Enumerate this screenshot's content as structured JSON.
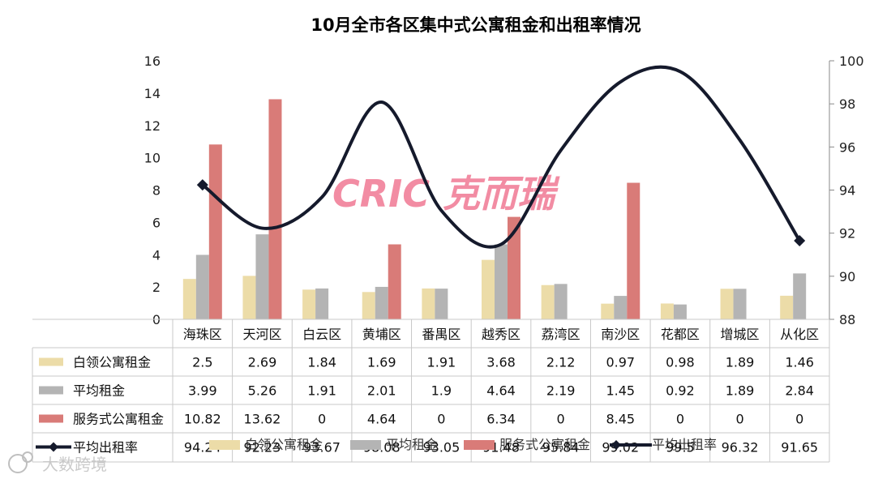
{
  "chart_data": {
    "type": "bar",
    "title": "10月全市各区集中式公寓租金和出租率情况",
    "categories": [
      "海珠区",
      "天河区",
      "白云区",
      "黄埔区",
      "番禺区",
      "越秀区",
      "荔湾区",
      "南沙区",
      "花都区",
      "增城区",
      "从化区"
    ],
    "series": [
      {
        "name": "白领公寓租金",
        "type": "bar",
        "axis": "left",
        "color": "#ecdca8",
        "values": [
          2.5,
          2.69,
          1.84,
          1.69,
          1.91,
          3.68,
          2.12,
          0.97,
          0.98,
          1.89,
          1.46
        ],
        "labels": [
          "2.5",
          "2.69",
          "1.84",
          "1.69",
          "1.91",
          "3.68",
          "2.12",
          "0.97",
          "0.98",
          "1.89",
          "1.46"
        ]
      },
      {
        "name": "平均租金",
        "type": "bar",
        "axis": "left",
        "color": "#b4b4b4",
        "values": [
          3.99,
          5.26,
          1.91,
          2.01,
          1.9,
          4.64,
          2.19,
          1.45,
          0.92,
          1.89,
          2.84
        ],
        "labels": [
          "3.99",
          "5.26",
          "1.91",
          "2.01",
          "1.9",
          "4.64",
          "2.19",
          "1.45",
          "0.92",
          "1.89",
          "2.84"
        ]
      },
      {
        "name": "服务式公寓租金",
        "type": "bar",
        "axis": "left",
        "color": "#d97b78",
        "values": [
          10.82,
          13.62,
          0,
          4.64,
          0,
          6.34,
          0,
          8.45,
          0,
          0,
          0
        ],
        "labels": [
          "10.82",
          "13.62",
          "0",
          "4.64",
          "0",
          "6.34",
          "0",
          "8.45",
          "0",
          "0",
          "0"
        ]
      },
      {
        "name": "平均出租率",
        "type": "line",
        "axis": "right",
        "color": "#151a2c",
        "values": [
          94.24,
          92.23,
          93.67,
          98.08,
          93.05,
          91.48,
          95.84,
          99.02,
          99.5,
          96.32,
          91.65
        ],
        "labels": [
          "94.24",
          "92.23",
          "93.67",
          "98.08",
          "93.05",
          "91.48",
          "95.84",
          "99.02",
          "99.5",
          "96.32",
          "91.65"
        ]
      }
    ],
    "ylim_left": [
      0,
      16
    ],
    "yticks_left": [
      "0",
      "2",
      "4",
      "6",
      "8",
      "10",
      "12",
      "14",
      "16"
    ],
    "ylim_right": [
      88,
      100
    ],
    "yticks_right": [
      "88",
      "90",
      "92",
      "94",
      "96",
      "98",
      "100"
    ],
    "legend_position": "bottom",
    "watermark_text": "CRIC 克而瑞",
    "corner_watermark": "大数跨境"
  }
}
